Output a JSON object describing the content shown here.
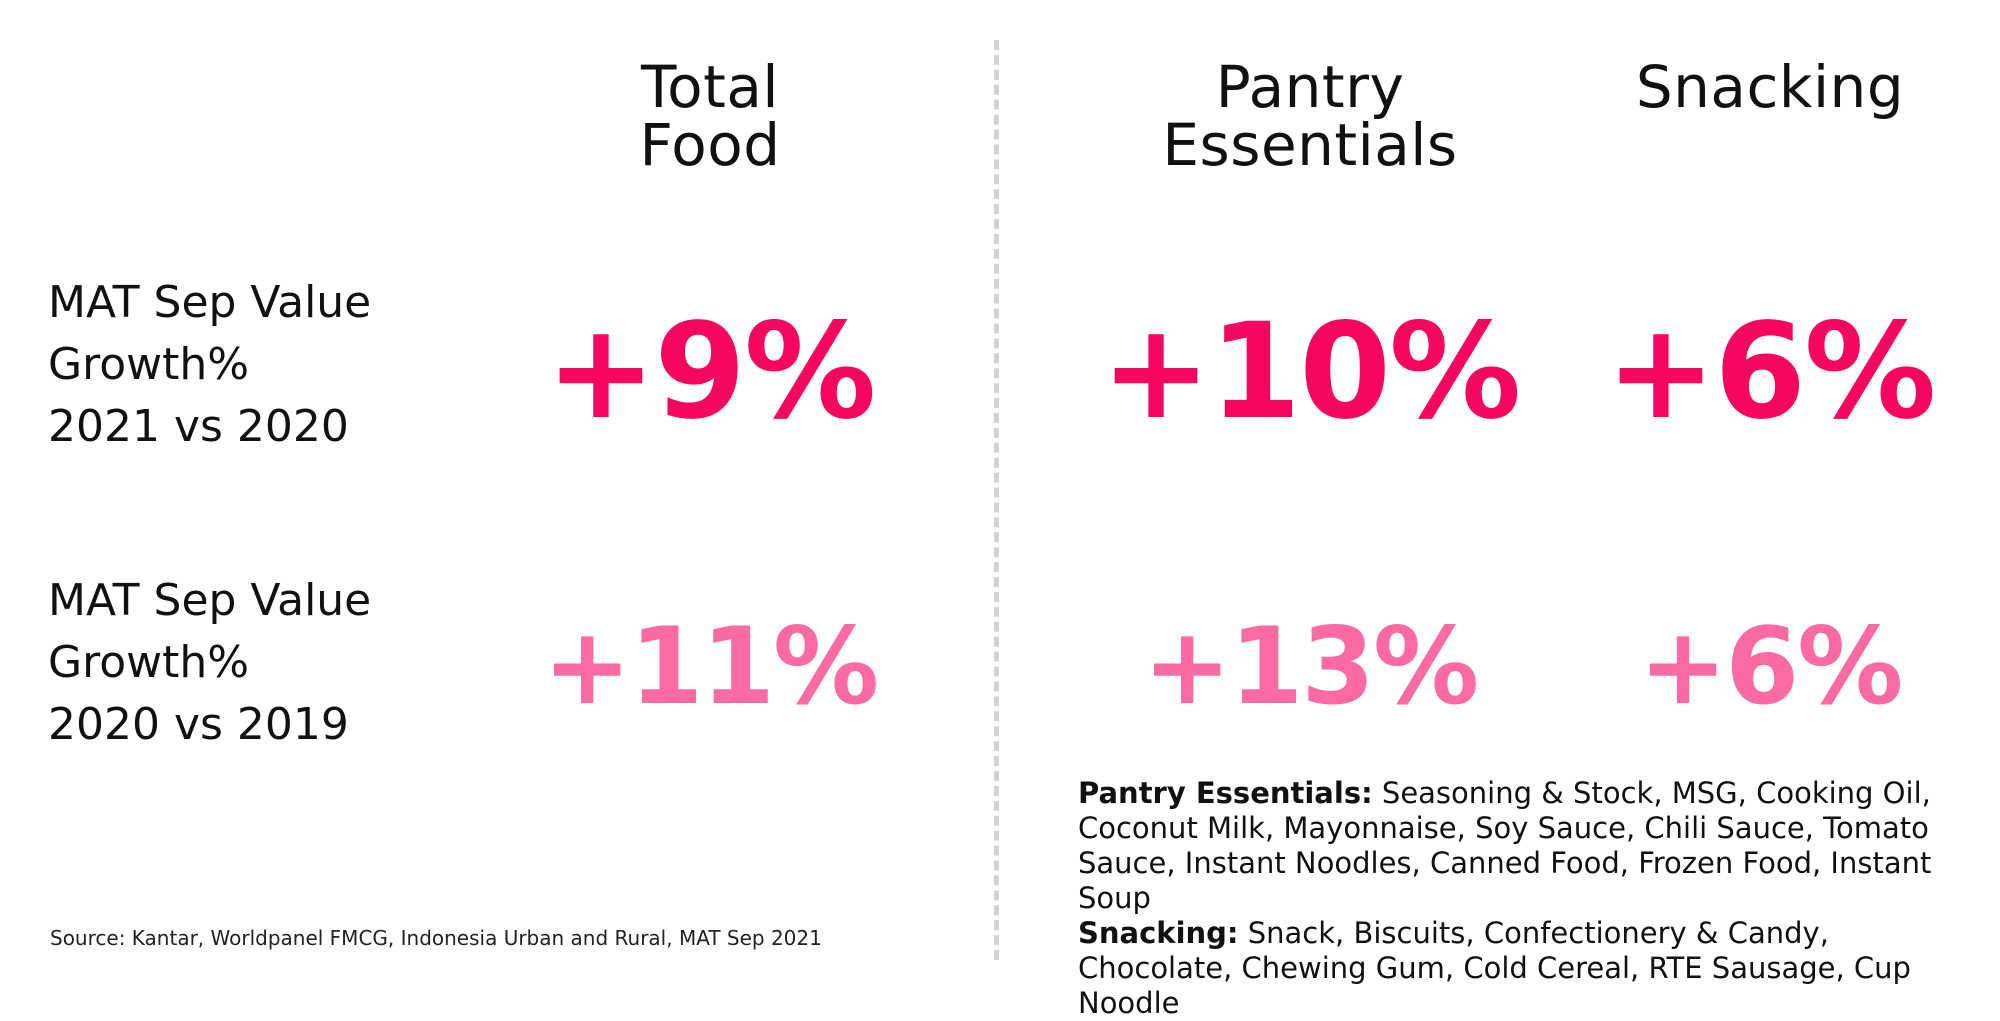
{
  "columns": {
    "total_food": "Total\nFood",
    "pantry_essentials": "Pantry\nEssentials",
    "snacking": "Snacking"
  },
  "rows": {
    "row1_label": "MAT Sep Value\nGrowth%\n2021 vs 2020",
    "row2_label": "MAT Sep Value\nGrowth%\n2020 vs 2019"
  },
  "values": {
    "row1": {
      "total_food": "+9%",
      "pantry_essentials": "+10%",
      "snacking": "+6%"
    },
    "row2": {
      "total_food": "+11%",
      "pantry_essentials": "+13%",
      "snacking": "+6%"
    }
  },
  "colors": {
    "row1": "#f5075f",
    "row2": "#fb6aa2",
    "divider": "#d3d3d3"
  },
  "definitions": {
    "pantry_label": "Pantry Essentials:",
    "pantry_text": "  Seasoning & Stock, MSG, Cooking Oil, Coconut Milk, Mayonnaise, Soy Sauce, Chili Sauce, Tomato Sauce, Instant Noodles, Canned Food, Frozen Food, Instant Soup",
    "snacking_label": "Snacking:",
    "snacking_text": " Snack, Biscuits, Confectionery & Candy, Chocolate, Chewing Gum, Cold Cereal, RTE Sausage, Cup Noodle"
  },
  "source": "Source: Kantar, Worldpanel FMCG, Indonesia Urban and Rural, MAT Sep 2021"
}
